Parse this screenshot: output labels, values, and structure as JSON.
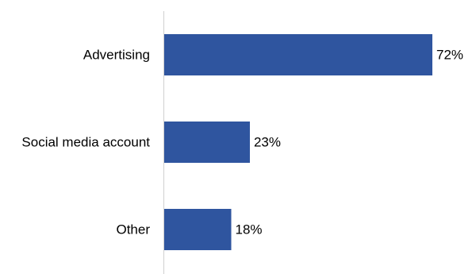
{
  "chart_data": {
    "type": "hbar",
    "categories": [
      "Advertising",
      "Social media account",
      "Other"
    ],
    "values": [
      72,
      23,
      18
    ],
    "value_labels": [
      "72%",
      "23%",
      "18%"
    ],
    "color": "#2f559f"
  }
}
